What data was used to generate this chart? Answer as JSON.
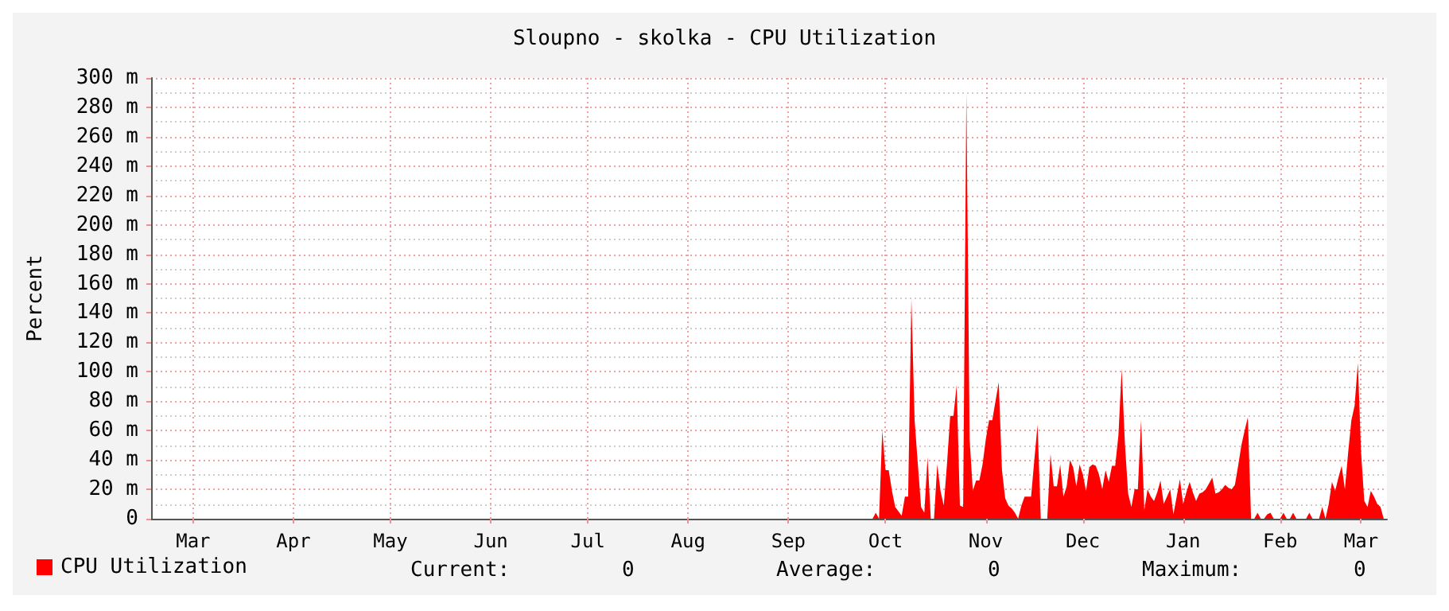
{
  "chart_data": {
    "type": "area",
    "title": "Sloupno - skolka - CPU Utilization",
    "ylabel": "Percent",
    "categories": [
      null,
      null,
      null,
      null,
      null,
      null,
      null,
      null,
      null,
      null,
      null,
      null,
      null,
      "Mar",
      null,
      null,
      null,
      null,
      null,
      null,
      null,
      null,
      null,
      null,
      null,
      null,
      null,
      null,
      null,
      null,
      null,
      null,
      null,
      null,
      null,
      null,
      null,
      null,
      null,
      null,
      null,
      null,
      null,
      null,
      "Apr",
      null,
      null,
      null,
      null,
      null,
      null,
      null,
      null,
      null,
      null,
      null,
      null,
      null,
      null,
      null,
      null,
      null,
      null,
      null,
      null,
      null,
      null,
      null,
      null,
      null,
      null,
      null,
      null,
      null,
      "May",
      null,
      null,
      null,
      null,
      null,
      null,
      null,
      null,
      null,
      null,
      null,
      null,
      null,
      null,
      null,
      null,
      null,
      null,
      null,
      null,
      null,
      null,
      null,
      null,
      null,
      null,
      null,
      null,
      null,
      null,
      "Jun",
      null,
      null,
      null,
      null,
      null,
      null,
      null,
      null,
      null,
      null,
      null,
      null,
      null,
      null,
      null,
      null,
      null,
      null,
      null,
      null,
      null,
      null,
      null,
      null,
      null,
      null,
      null,
      null,
      null,
      "Jul",
      null,
      null,
      null,
      null,
      null,
      null,
      null,
      null,
      null,
      null,
      null,
      null,
      null,
      null,
      null,
      null,
      null,
      null,
      null,
      null,
      null,
      null,
      null,
      null,
      null,
      null,
      null,
      null,
      null,
      null,
      "Aug",
      null,
      null,
      null,
      null,
      null,
      null,
      null,
      null,
      null,
      null,
      null,
      null,
      null,
      null,
      null,
      null,
      null,
      null,
      null,
      null,
      null,
      null,
      null,
      null,
      null,
      null,
      null,
      null,
      null,
      null,
      "Sep",
      null,
      null,
      null,
      null,
      null,
      null,
      null,
      null,
      null,
      null,
      null,
      null,
      null,
      null,
      null,
      null,
      null,
      null,
      null,
      null,
      null,
      null,
      null,
      null,
      null,
      null,
      null,
      null,
      null,
      "Oct",
      null,
      null,
      null,
      null,
      null,
      null,
      null,
      null,
      null,
      null,
      null,
      null,
      null,
      null,
      null,
      null,
      null,
      null,
      null,
      null,
      null,
      null,
      null,
      null,
      null,
      null,
      null,
      null,
      null,
      null,
      "Nov",
      null,
      null,
      null,
      null,
      null,
      null,
      null,
      null,
      null,
      null,
      null,
      null,
      null,
      null,
      null,
      null,
      null,
      null,
      null,
      null,
      null,
      null,
      null,
      null,
      null,
      null,
      null,
      null,
      null,
      "Dec",
      null,
      null,
      null,
      null,
      null,
      null,
      null,
      null,
      null,
      null,
      null,
      null,
      null,
      null,
      null,
      null,
      null,
      null,
      null,
      null,
      null,
      null,
      null,
      null,
      null,
      null,
      null,
      null,
      null,
      null,
      "Jan",
      null,
      null,
      null,
      null,
      null,
      null,
      null,
      null,
      null,
      null,
      null,
      null,
      null,
      null,
      null,
      null,
      null,
      null,
      null,
      null,
      null,
      null,
      null,
      null,
      null,
      null,
      null,
      null,
      null,
      "Feb",
      null,
      null,
      null,
      null,
      null,
      null,
      null,
      null,
      null,
      null,
      null,
      null,
      null,
      null,
      null,
      null,
      null,
      null,
      null,
      null,
      null,
      null,
      null,
      null,
      "Mar",
      null,
      null,
      null,
      null,
      null,
      null,
      null,
      null
    ],
    "ylim": [
      0,
      300
    ],
    "yticks": [
      {
        "value": 0,
        "label": "0"
      },
      {
        "value": 20,
        "label": "20 m"
      },
      {
        "value": 40,
        "label": "40 m"
      },
      {
        "value": 60,
        "label": "60 m"
      },
      {
        "value": 80,
        "label": "80 m"
      },
      {
        "value": 100,
        "label": "100 m"
      },
      {
        "value": 120,
        "label": "120 m"
      },
      {
        "value": 140,
        "label": "140 m"
      },
      {
        "value": 160,
        "label": "160 m"
      },
      {
        "value": 180,
        "label": "180 m"
      },
      {
        "value": 200,
        "label": "200 m"
      },
      {
        "value": 220,
        "label": "220 m"
      },
      {
        "value": 240,
        "label": "240 m"
      },
      {
        "value": 260,
        "label": "260 m"
      },
      {
        "value": 280,
        "label": "280 m"
      },
      {
        "value": 300,
        "label": "300 m"
      }
    ],
    "grid": true,
    "legend": "bottom left",
    "series": [
      {
        "name": "CPU Utilization",
        "color": "#ff0000",
        "values": [
          null,
          null,
          null,
          null,
          null,
          null,
          null,
          null,
          null,
          null,
          null,
          null,
          null,
          null,
          null,
          null,
          null,
          null,
          null,
          null,
          null,
          null,
          null,
          null,
          null,
          null,
          null,
          null,
          null,
          null,
          null,
          null,
          null,
          null,
          null,
          null,
          null,
          null,
          null,
          null,
          null,
          null,
          null,
          null,
          null,
          null,
          null,
          null,
          null,
          null,
          null,
          null,
          null,
          null,
          null,
          null,
          null,
          null,
          null,
          null,
          null,
          null,
          null,
          null,
          null,
          null,
          null,
          null,
          null,
          null,
          null,
          null,
          null,
          null,
          null,
          null,
          null,
          null,
          null,
          null,
          null,
          null,
          null,
          null,
          null,
          null,
          null,
          null,
          null,
          null,
          null,
          null,
          null,
          null,
          null,
          null,
          null,
          null,
          null,
          null,
          null,
          null,
          null,
          null,
          null,
          null,
          null,
          null,
          null,
          null,
          null,
          null,
          null,
          null,
          null,
          null,
          null,
          null,
          null,
          null,
          null,
          null,
          null,
          null,
          null,
          null,
          null,
          null,
          null,
          null,
          null,
          null,
          null,
          null,
          null,
          null,
          null,
          null,
          null,
          null,
          null,
          null,
          null,
          null,
          null,
          null,
          null,
          null,
          null,
          null,
          null,
          null,
          null,
          null,
          null,
          null,
          null,
          null,
          null,
          null,
          null,
          null,
          null,
          null,
          null,
          null,
          null,
          null,
          null,
          null,
          null,
          null,
          null,
          null,
          null,
          null,
          null,
          null,
          null,
          null,
          null,
          null,
          null,
          null,
          null,
          null,
          null,
          null,
          null,
          null,
          null,
          null,
          null,
          null,
          null,
          null,
          null,
          null,
          null,
          null,
          null,
          null,
          null,
          null,
          null,
          null,
          null,
          null,
          null,
          null,
          null,
          null,
          null,
          null,
          null,
          null,
          null,
          null,
          null,
          null,
          null,
          null,
          null,
          0,
          4,
          0,
          60,
          33,
          33,
          19,
          8,
          5,
          2,
          15,
          15,
          150,
          67,
          37,
          8,
          4,
          42,
          0,
          0,
          37,
          19,
          9,
          37,
          70,
          70,
          91,
          9,
          8,
          290,
          54,
          19,
          26,
          26,
          37,
          54,
          67,
          67,
          80,
          93,
          33,
          14,
          9,
          7,
          4,
          0,
          9,
          15,
          15,
          15,
          40,
          64,
          0,
          0,
          0,
          44,
          22,
          22,
          37,
          15,
          22,
          40,
          35,
          22,
          37,
          30,
          19,
          35,
          37,
          36,
          30,
          20,
          33,
          25,
          36,
          36,
          57,
          102,
          51,
          17,
          8,
          20,
          20,
          67,
          6,
          20,
          15,
          12,
          18,
          26,
          10,
          15,
          20,
          3,
          15,
          27,
          10,
          18,
          25,
          18,
          12,
          17,
          18,
          20,
          24,
          28,
          17,
          18,
          20,
          23,
          21,
          20,
          23,
          36,
          50,
          60,
          69,
          0,
          0,
          4,
          0,
          0,
          3,
          4,
          0,
          0,
          0,
          4,
          0,
          0,
          4,
          0,
          0,
          0,
          0,
          4,
          0,
          0,
          0,
          8,
          0,
          10,
          25,
          19,
          28,
          36,
          20,
          45,
          67,
          77,
          106,
          45,
          12,
          8,
          19,
          15,
          10,
          8,
          0,
          0
        ]
      }
    ],
    "annotations": [
      "Current:         0",
      "Average:         0",
      "Maximum:         0"
    ]
  }
}
